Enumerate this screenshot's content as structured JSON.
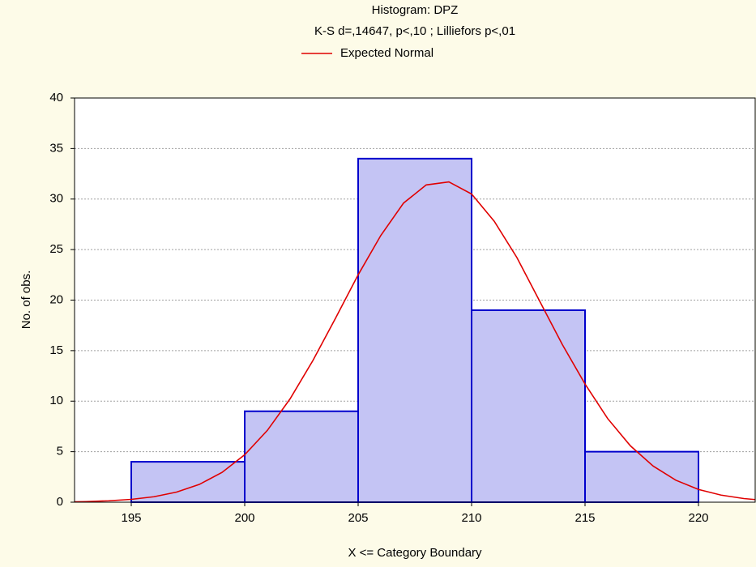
{
  "chart_data": {
    "type": "histogram",
    "title": "Histogram: DPZ",
    "subtitle": "K-S d=,14647, p<,10 ; Lilliefors p<,01",
    "xlabel": "X <= Category Boundary",
    "ylabel": "No. of obs.",
    "bins": [
      195,
      200,
      205,
      210,
      215,
      220
    ],
    "values": [
      4,
      9,
      34,
      19,
      5
    ],
    "color": "#c4c4f4",
    "edgecolor": "#0000cc",
    "series": [
      {
        "name": "Expected Normal",
        "color": "#e00000",
        "x": [
          192.5,
          193,
          194,
          195,
          196,
          197,
          198,
          199,
          200,
          201,
          202,
          203,
          204,
          205,
          206,
          207,
          208,
          209,
          210,
          211,
          212,
          213,
          214,
          215,
          216,
          217,
          218,
          219,
          220,
          221,
          222,
          222.5
        ],
        "values": [
          0.04,
          0.06,
          0.14,
          0.28,
          0.54,
          1.0,
          1.76,
          2.95,
          4.7,
          7.11,
          10.23,
          14.0,
          18.2,
          22.5,
          26.4,
          29.6,
          31.4,
          31.7,
          30.5,
          27.8,
          24.2,
          19.9,
          15.6,
          11.7,
          8.27,
          5.58,
          3.58,
          2.18,
          1.26,
          0.7,
          0.36,
          0.26
        ]
      }
    ],
    "xlim": [
      192.5,
      222.5
    ],
    "ylim": [
      0,
      40
    ],
    "xticks": [
      195,
      200,
      205,
      210,
      215,
      220
    ],
    "yticks": [
      0,
      5,
      10,
      15,
      20,
      25,
      30,
      35,
      40
    ],
    "grid": true,
    "legend": "top"
  }
}
